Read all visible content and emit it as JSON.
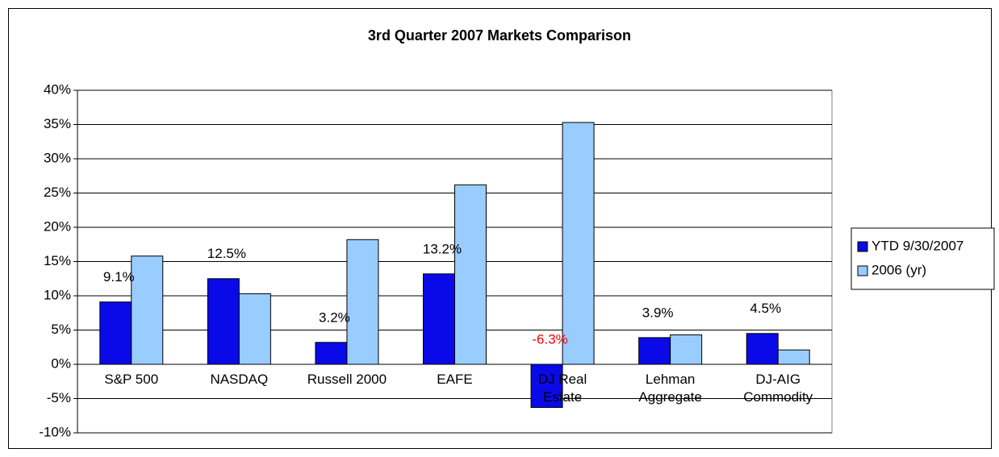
{
  "chart_data": {
    "type": "bar",
    "title": "3rd Quarter 2007 Markets Comparison",
    "categories": [
      "S&P 500",
      "NASDAQ",
      "Russell 2000",
      "EAFE",
      "DJ Real\nEstate",
      "Lehman\nAggregate",
      "DJ-AIG\nCommodity"
    ],
    "series": [
      {
        "name": "YTD 9/30/2007",
        "color": "#0a0ae8",
        "values": [
          9.1,
          12.5,
          3.2,
          13.2,
          -6.3,
          3.9,
          4.5
        ],
        "value_labels": [
          "9.1%",
          "12.5%",
          "3.2%",
          "13.2%",
          "-6.3%",
          "3.9%",
          "4.5%"
        ]
      },
      {
        "name": "2006 (yr)",
        "color": "#99ccff",
        "values": [
          15.8,
          10.3,
          18.2,
          26.2,
          35.3,
          4.3,
          2.1
        ]
      }
    ],
    "ylim": [
      -10,
      40
    ],
    "yticks": [
      {
        "value": -10,
        "label": "-10%"
      },
      {
        "value": -5,
        "label": "-5%"
      },
      {
        "value": 0,
        "label": "0%"
      },
      {
        "value": 5,
        "label": "5%"
      },
      {
        "value": 10,
        "label": "10%"
      },
      {
        "value": 15,
        "label": "15%"
      },
      {
        "value": 20,
        "label": "20%"
      },
      {
        "value": 25,
        "label": "25%"
      },
      {
        "value": 30,
        "label": "30%"
      },
      {
        "value": 35,
        "label": "35%"
      },
      {
        "value": 40,
        "label": "40%"
      }
    ],
    "grid": true,
    "legend": "right"
  }
}
